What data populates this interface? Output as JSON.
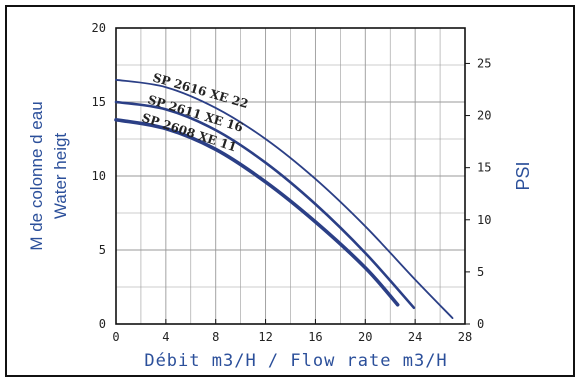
{
  "chart_data": {
    "type": "line",
    "xlabel": "Débit m3/H / Flow rate m3/H",
    "ylabel_line1": "M de colonne d eau",
    "ylabel_line2": "Water heigt",
    "y2label": "PSI",
    "xlim": [
      0,
      28
    ],
    "ylim": [
      0,
      20
    ],
    "y2lim": [
      0,
      28.4
    ],
    "x_ticks": [
      "0",
      "4",
      "8",
      "12",
      "16",
      "20",
      "24",
      "28"
    ],
    "y_ticks": [
      "0",
      "5",
      "10",
      "15",
      "20"
    ],
    "y2_ticks": [
      "0",
      "5",
      "10",
      "15",
      "20",
      "25"
    ],
    "grid": true,
    "series": [
      {
        "name": "SP 2616 XE 22",
        "x": [
          0,
          4,
          8,
          12,
          16,
          20,
          24,
          27
        ],
        "y": [
          16.5,
          16.0,
          14.6,
          12.5,
          9.8,
          6.6,
          3.0,
          0.4
        ]
      },
      {
        "name": "SP 2611 XE 16",
        "x": [
          0,
          4,
          8,
          12,
          16,
          20,
          23.9
        ],
        "y": [
          15.0,
          14.5,
          13.1,
          10.9,
          8.1,
          4.8,
          1.1
        ]
      },
      {
        "name": "SP 2608 XE 11",
        "x": [
          0,
          4,
          8,
          12,
          16,
          20,
          22.6
        ],
        "y": [
          13.8,
          13.2,
          11.8,
          9.6,
          6.9,
          3.8,
          1.3
        ]
      }
    ],
    "colors": {
      "curve": "#2b3f86",
      "frame": "#111111",
      "grid": "#999999",
      "axis_text": "#2b4f9a"
    }
  }
}
